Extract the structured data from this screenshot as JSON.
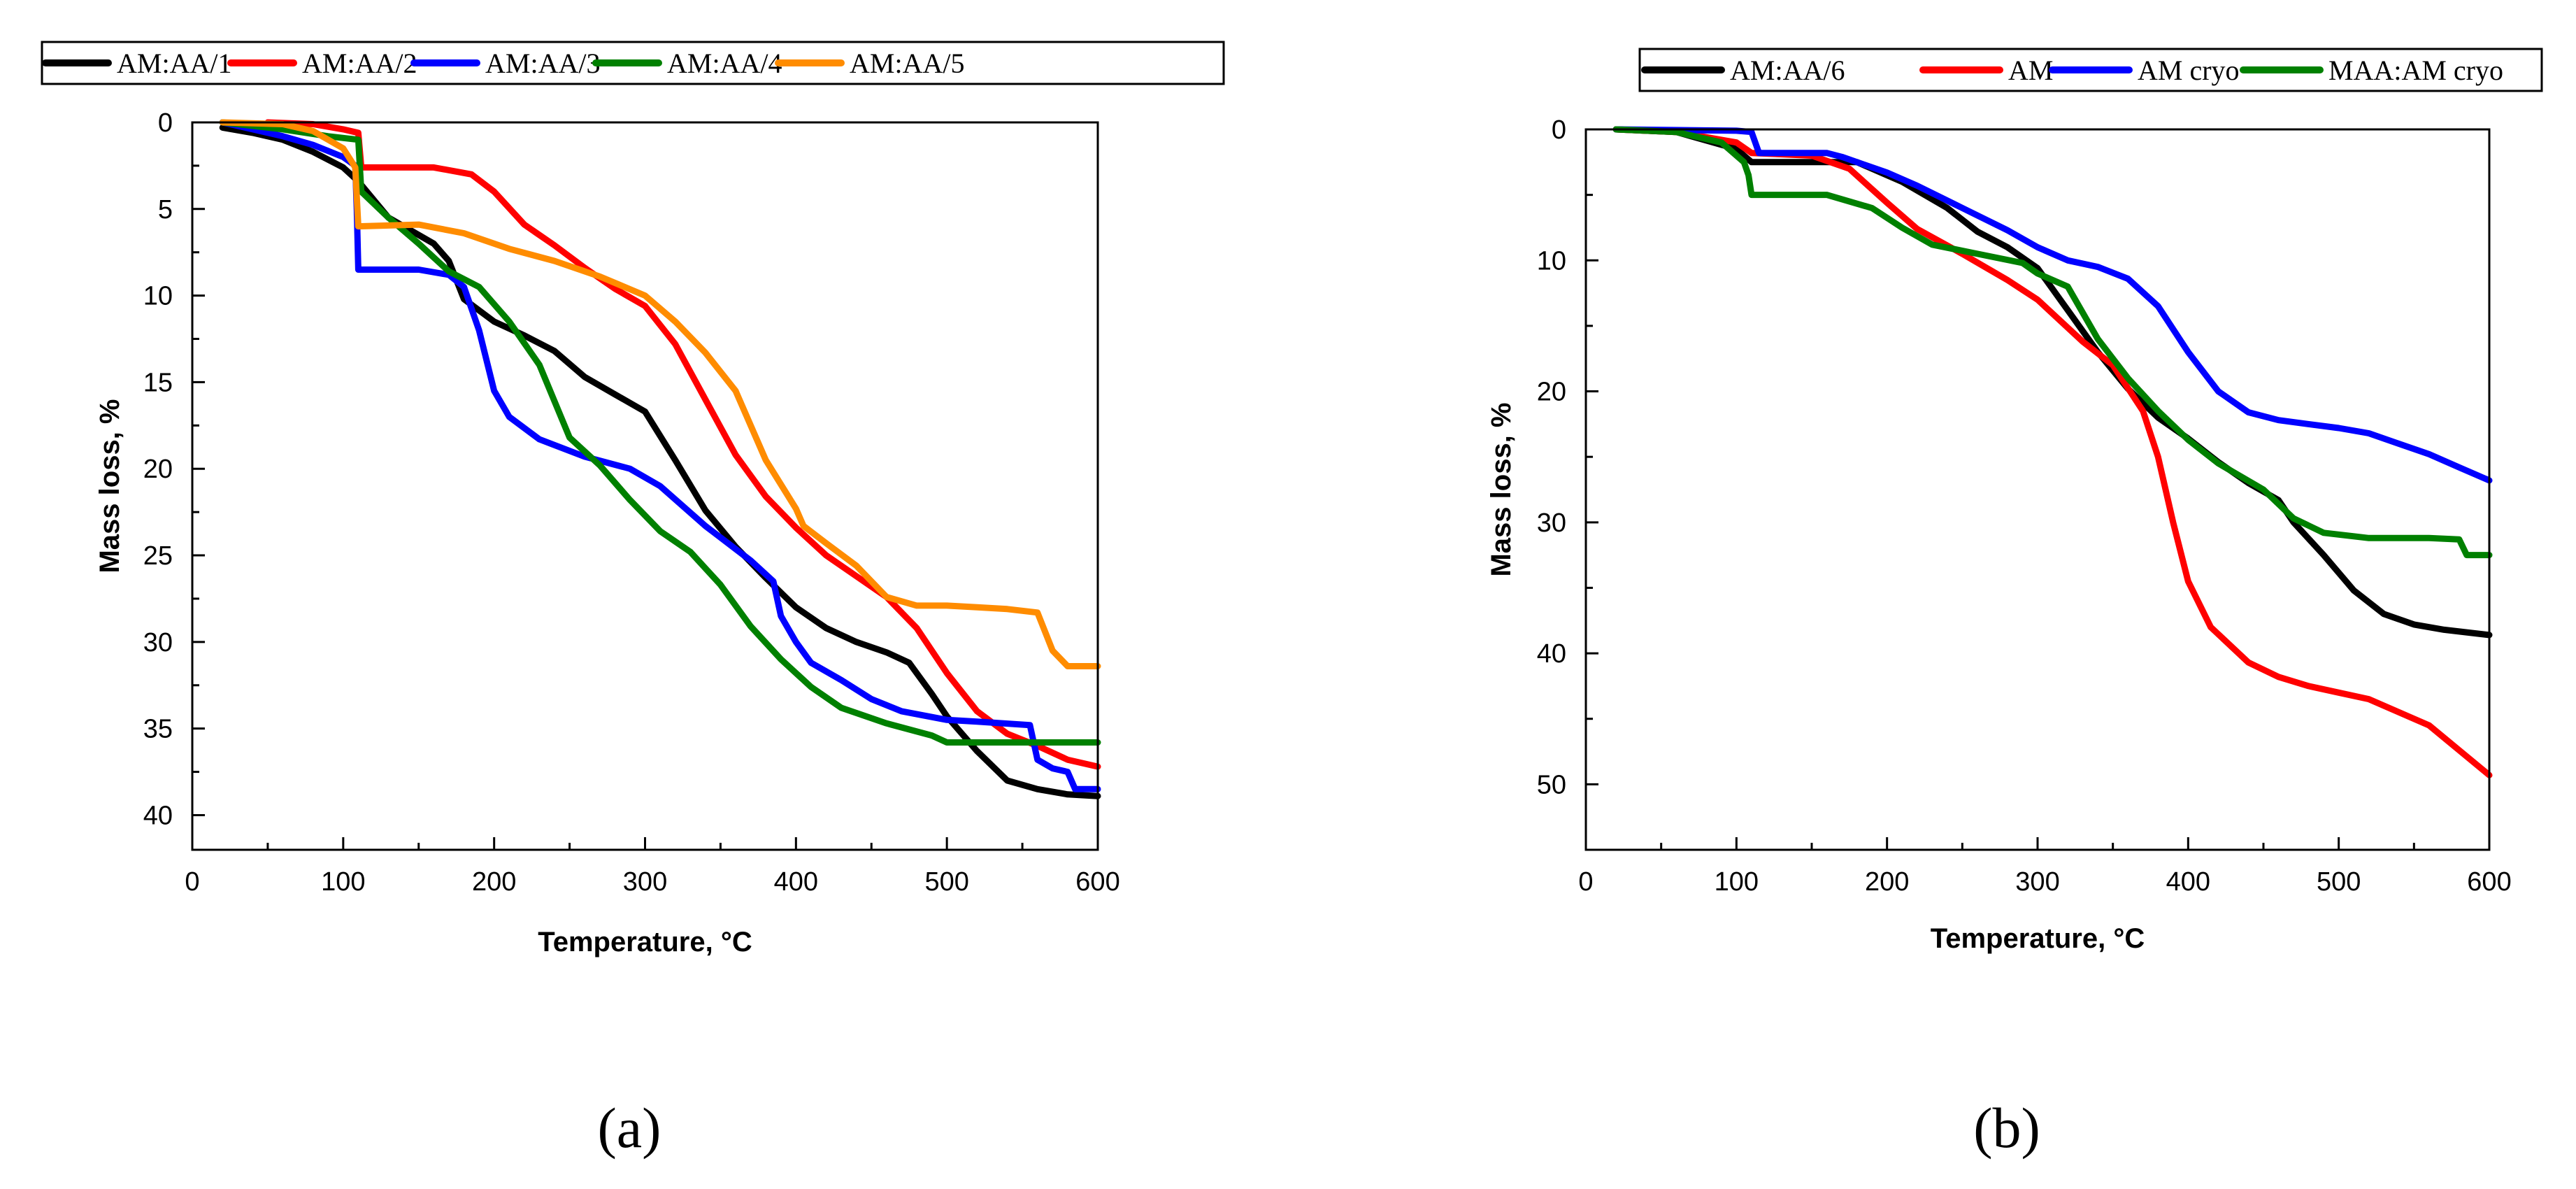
{
  "chart_data": [
    {
      "type": "line",
      "panel_label": "(a)",
      "xlabel": "Temperature, °C",
      "ylabel": "Mass loss, %",
      "xlim": [
        0,
        600
      ],
      "ylim": [
        0,
        42
      ],
      "y_inverted": true,
      "x_ticks": [
        0,
        100,
        200,
        300,
        400,
        500,
        600
      ],
      "y_ticks": [
        0,
        5,
        10,
        15,
        20,
        25,
        30,
        35,
        40
      ],
      "legend": "top",
      "series": [
        {
          "name": "AM:AA/1",
          "color": "#000000",
          "points": [
            [
              20,
              0.3
            ],
            [
              40,
              0.6
            ],
            [
              60,
              1.0
            ],
            [
              80,
              1.7
            ],
            [
              100,
              2.6
            ],
            [
              110,
              3.4
            ],
            [
              130,
              5.5
            ],
            [
              160,
              7.0
            ],
            [
              170,
              8.0
            ],
            [
              180,
              10.2
            ],
            [
              200,
              11.5
            ],
            [
              220,
              12.3
            ],
            [
              240,
              13.2
            ],
            [
              260,
              14.7
            ],
            [
              280,
              15.7
            ],
            [
              300,
              16.7
            ],
            [
              320,
              19.5
            ],
            [
              340,
              22.4
            ],
            [
              360,
              24.5
            ],
            [
              380,
              26.3
            ],
            [
              400,
              28.0
            ],
            [
              420,
              29.2
            ],
            [
              440,
              30.0
            ],
            [
              460,
              30.6
            ],
            [
              475,
              31.2
            ],
            [
              490,
              33.0
            ],
            [
              500,
              34.3
            ],
            [
              520,
              36.3
            ],
            [
              540,
              38.0
            ],
            [
              560,
              38.5
            ],
            [
              580,
              38.8
            ],
            [
              600,
              38.9
            ]
          ]
        },
        {
          "name": "AM:AA/2",
          "color": "#ff0000",
          "points": [
            [
              50,
              0.0
            ],
            [
              80,
              0.1
            ],
            [
              100,
              0.4
            ],
            [
              110,
              0.6
            ],
            [
              112,
              2.6
            ],
            [
              160,
              2.6
            ],
            [
              185,
              3.0
            ],
            [
              200,
              4.0
            ],
            [
              220,
              5.9
            ],
            [
              240,
              7.1
            ],
            [
              260,
              8.4
            ],
            [
              280,
              9.6
            ],
            [
              300,
              10.6
            ],
            [
              320,
              12.8
            ],
            [
              340,
              16.0
            ],
            [
              360,
              19.2
            ],
            [
              380,
              21.6
            ],
            [
              400,
              23.4
            ],
            [
              420,
              25.0
            ],
            [
              440,
              26.2
            ],
            [
              460,
              27.4
            ],
            [
              480,
              29.2
            ],
            [
              500,
              31.8
            ],
            [
              520,
              34.0
            ],
            [
              540,
              35.3
            ],
            [
              560,
              36.0
            ],
            [
              580,
              36.8
            ],
            [
              600,
              37.2
            ]
          ]
        },
        {
          "name": "AM:AA/3",
          "color": "#0000ff",
          "points": [
            [
              20,
              0.0
            ],
            [
              40,
              0.4
            ],
            [
              60,
              0.8
            ],
            [
              80,
              1.3
            ],
            [
              100,
              2.0
            ],
            [
              108,
              2.5
            ],
            [
              109,
              5.1
            ],
            [
              110,
              8.5
            ],
            [
              150,
              8.5
            ],
            [
              170,
              8.8
            ],
            [
              180,
              9.5
            ],
            [
              190,
              12.0
            ],
            [
              200,
              15.5
            ],
            [
              210,
              17.0
            ],
            [
              230,
              18.3
            ],
            [
              260,
              19.3
            ],
            [
              290,
              20.0
            ],
            [
              310,
              21.0
            ],
            [
              340,
              23.3
            ],
            [
              370,
              25.3
            ],
            [
              385,
              26.5
            ],
            [
              390,
              28.5
            ],
            [
              400,
              30.0
            ],
            [
              410,
              31.2
            ],
            [
              430,
              32.2
            ],
            [
              450,
              33.3
            ],
            [
              470,
              34.0
            ],
            [
              500,
              34.5
            ],
            [
              520,
              34.6
            ],
            [
              555,
              34.8
            ],
            [
              560,
              36.8
            ],
            [
              570,
              37.3
            ],
            [
              580,
              37.5
            ],
            [
              585,
              38.5
            ],
            [
              600,
              38.5
            ]
          ]
        },
        {
          "name": "AM:AA/4",
          "color": "#008000",
          "points": [
            [
              20,
              0.0
            ],
            [
              60,
              0.4
            ],
            [
              90,
              0.8
            ],
            [
              110,
              1.0
            ],
            [
              112,
              4.0
            ],
            [
              130,
              5.5
            ],
            [
              150,
              7.0
            ],
            [
              170,
              8.6
            ],
            [
              190,
              9.5
            ],
            [
              210,
              11.5
            ],
            [
              230,
              14.0
            ],
            [
              250,
              18.2
            ],
            [
              270,
              19.8
            ],
            [
              290,
              21.8
            ],
            [
              310,
              23.6
            ],
            [
              330,
              24.8
            ],
            [
              350,
              26.7
            ],
            [
              370,
              29.1
            ],
            [
              390,
              31.0
            ],
            [
              410,
              32.6
            ],
            [
              430,
              33.8
            ],
            [
              460,
              34.7
            ],
            [
              490,
              35.4
            ],
            [
              500,
              35.8
            ],
            [
              520,
              35.8
            ],
            [
              600,
              35.8
            ]
          ]
        },
        {
          "name": "AM:AA/5",
          "color": "#ff8c00",
          "points": [
            [
              20,
              0.0
            ],
            [
              60,
              0.1
            ],
            [
              80,
              0.5
            ],
            [
              100,
              1.5
            ],
            [
              108,
              2.6
            ],
            [
              110,
              6.0
            ],
            [
              150,
              5.9
            ],
            [
              180,
              6.4
            ],
            [
              210,
              7.3
            ],
            [
              240,
              8.0
            ],
            [
              270,
              8.9
            ],
            [
              300,
              10.0
            ],
            [
              320,
              11.5
            ],
            [
              340,
              13.3
            ],
            [
              360,
              15.5
            ],
            [
              380,
              19.5
            ],
            [
              400,
              22.3
            ],
            [
              405,
              23.3
            ],
            [
              420,
              24.3
            ],
            [
              440,
              25.6
            ],
            [
              460,
              27.4
            ],
            [
              480,
              27.9
            ],
            [
              500,
              27.9
            ],
            [
              520,
              28.0
            ],
            [
              540,
              28.1
            ],
            [
              560,
              28.3
            ],
            [
              570,
              30.5
            ],
            [
              580,
              31.4
            ],
            [
              600,
              31.4
            ]
          ]
        }
      ]
    },
    {
      "type": "line",
      "panel_label": "(b)",
      "xlabel": "Temperature, °C",
      "ylabel": "Mass loss, %",
      "xlim": [
        0,
        600
      ],
      "ylim": [
        0,
        55
      ],
      "y_inverted": true,
      "x_ticks": [
        0,
        100,
        200,
        300,
        400,
        500,
        600
      ],
      "y_ticks": [
        0,
        10,
        20,
        30,
        40,
        50
      ],
      "legend": "top-right",
      "series": [
        {
          "name": "AM:AA/6",
          "color": "#000000",
          "points": [
            [
              20,
              0.0
            ],
            [
              60,
              0.2
            ],
            [
              100,
              1.5
            ],
            [
              110,
              2.5
            ],
            [
              180,
              2.5
            ],
            [
              210,
              4.0
            ],
            [
              240,
              6.0
            ],
            [
              260,
              7.8
            ],
            [
              280,
              9.0
            ],
            [
              300,
              10.6
            ],
            [
              320,
              13.8
            ],
            [
              340,
              17.0
            ],
            [
              360,
              19.8
            ],
            [
              380,
              22.0
            ],
            [
              400,
              23.6
            ],
            [
              420,
              25.4
            ],
            [
              440,
              27.0
            ],
            [
              460,
              28.3
            ],
            [
              470,
              30.0
            ],
            [
              490,
              32.5
            ],
            [
              510,
              35.2
            ],
            [
              530,
              37.0
            ],
            [
              550,
              37.8
            ],
            [
              570,
              38.2
            ],
            [
              600,
              38.6
            ]
          ]
        },
        {
          "name": "AM",
          "color": "#ff0000",
          "points": [
            [
              20,
              0.0
            ],
            [
              60,
              0.2
            ],
            [
              100,
              1.0
            ],
            [
              110,
              1.8
            ],
            [
              150,
              2.0
            ],
            [
              175,
              3.0
            ],
            [
              200,
              5.6
            ],
            [
              220,
              7.6
            ],
            [
              250,
              9.5
            ],
            [
              280,
              11.5
            ],
            [
              300,
              13.0
            ],
            [
              330,
              16.2
            ],
            [
              350,
              18.0
            ],
            [
              370,
              21.5
            ],
            [
              380,
              25.0
            ],
            [
              390,
              30.0
            ],
            [
              400,
              34.5
            ],
            [
              415,
              38.0
            ],
            [
              440,
              40.7
            ],
            [
              460,
              41.8
            ],
            [
              480,
              42.5
            ],
            [
              500,
              43.0
            ],
            [
              520,
              43.5
            ],
            [
              540,
              44.5
            ],
            [
              560,
              45.5
            ],
            [
              580,
              47.4
            ],
            [
              600,
              49.3
            ]
          ]
        },
        {
          "name": "AM cryo",
          "color": "#0000ff",
          "points": [
            [
              20,
              0.0
            ],
            [
              100,
              0.1
            ],
            [
              110,
              0.2
            ],
            [
              115,
              1.8
            ],
            [
              160,
              1.8
            ],
            [
              170,
              2.1
            ],
            [
              200,
              3.3
            ],
            [
              220,
              4.3
            ],
            [
              250,
              6.0
            ],
            [
              280,
              7.7
            ],
            [
              300,
              9.0
            ],
            [
              320,
              10.0
            ],
            [
              340,
              10.5
            ],
            [
              360,
              11.4
            ],
            [
              380,
              13.5
            ],
            [
              400,
              17.0
            ],
            [
              420,
              20.0
            ],
            [
              440,
              21.6
            ],
            [
              460,
              22.2
            ],
            [
              480,
              22.5
            ],
            [
              500,
              22.8
            ],
            [
              520,
              23.2
            ],
            [
              540,
              24.0
            ],
            [
              560,
              24.8
            ],
            [
              580,
              25.8
            ],
            [
              600,
              26.8
            ]
          ]
        },
        {
          "name": "MAA:AM cryo",
          "color": "#008000",
          "points": [
            [
              20,
              0.0
            ],
            [
              60,
              0.2
            ],
            [
              90,
              1.0
            ],
            [
              105,
              2.5
            ],
            [
              108,
              3.5
            ],
            [
              110,
              5.0
            ],
            [
              160,
              5.0
            ],
            [
              190,
              6.0
            ],
            [
              210,
              7.5
            ],
            [
              230,
              8.8
            ],
            [
              260,
              9.5
            ],
            [
              290,
              10.2
            ],
            [
              300,
              11.0
            ],
            [
              320,
              12.0
            ],
            [
              340,
              16.0
            ],
            [
              360,
              19.0
            ],
            [
              380,
              21.5
            ],
            [
              400,
              23.7
            ],
            [
              420,
              25.5
            ],
            [
              450,
              27.5
            ],
            [
              470,
              29.7
            ],
            [
              490,
              30.8
            ],
            [
              520,
              31.2
            ],
            [
              560,
              31.2
            ],
            [
              580,
              31.3
            ],
            [
              585,
              32.5
            ],
            [
              600,
              32.5
            ]
          ]
        }
      ]
    }
  ]
}
